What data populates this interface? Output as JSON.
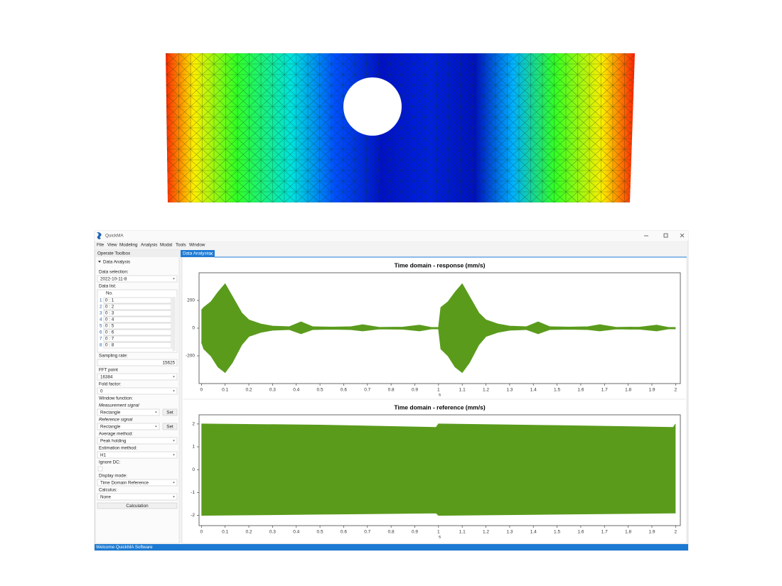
{
  "window": {
    "title": "QuickMA",
    "menu": [
      "File",
      "View",
      "Modeling",
      "Analysis",
      "Modal",
      "Tools",
      "Window"
    ],
    "status": "Welcome QuickMA Software"
  },
  "toolbox": {
    "title": "Operate Toolbox",
    "section": "Data Analysis",
    "data_selection": {
      "label": "Data selection:",
      "value": "2022-10-11-8"
    },
    "data_list": {
      "label": "Data list:",
      "header": "No.",
      "rows": [
        [
          "1",
          "0 : 1"
        ],
        [
          "2",
          "0 : 2"
        ],
        [
          "3",
          "0 : 3"
        ],
        [
          "4",
          "0 : 4"
        ],
        [
          "5",
          "0 : 5"
        ],
        [
          "6",
          "0 : 6"
        ],
        [
          "7",
          "0 : 7"
        ],
        [
          "8",
          "0 : 8"
        ]
      ]
    },
    "sampling_rate": {
      "label": "Sampling rate:",
      "value": "15625"
    },
    "fft_point": {
      "label": "FFT point",
      "value": "16384"
    },
    "fold_factor": {
      "label": "Fold factor:",
      "value": "0"
    },
    "window_function": {
      "label": "Window function:",
      "measurement": {
        "label": "Measurement signal",
        "value": "Rectangle",
        "button": "Set"
      },
      "reference": {
        "label": "Reference signal",
        "value": "Rectangle",
        "button": "Set"
      }
    },
    "average_method": {
      "label": "Average method:",
      "value": "Peak holding"
    },
    "estimation_method": {
      "label": "Estimation method:",
      "value": "H1"
    },
    "ignore_dc": {
      "label": "Ignore DC:"
    },
    "display_mode": {
      "label": "Display mode:",
      "value": "Time Domain Reference"
    },
    "calculus": {
      "label": "Calculus:",
      "value": "None"
    },
    "button": "Calculation"
  },
  "tab": "Data Analysis",
  "chart_data": [
    {
      "type": "area",
      "title": "Time domain - response (mm/s)",
      "xlabel": "s",
      "color": "#5a9b1c",
      "x": [
        0,
        0.01,
        0.04,
        0.07,
        0.1,
        0.13,
        0.17,
        0.2,
        0.25,
        0.3,
        0.37,
        0.42,
        0.47,
        0.55,
        0.63,
        0.68,
        0.75,
        0.85,
        0.92,
        0.97,
        1.0,
        1.01,
        1.04,
        1.07,
        1.1,
        1.13,
        1.17,
        1.2,
        1.25,
        1.3,
        1.37,
        1.42,
        1.47,
        1.55,
        1.63,
        1.68,
        1.75,
        1.85,
        1.92,
        1.97,
        2.0
      ],
      "series": [
        {
          "values": [
            130,
            150,
            190,
            260,
            320,
            230,
            110,
            60,
            30,
            15,
            10,
            45,
            10,
            8,
            10,
            25,
            6,
            8,
            22,
            5,
            5,
            150,
            190,
            260,
            320,
            230,
            110,
            60,
            30,
            15,
            10,
            45,
            10,
            8,
            10,
            25,
            6,
            8,
            22,
            5,
            5
          ]
        },
        {
          "values": [
            -100,
            -150,
            -200,
            -280,
            -320,
            -250,
            -120,
            -60,
            -30,
            -15,
            -10,
            -40,
            -10,
            -8,
            -10,
            -20,
            -6,
            -8,
            -20,
            -5,
            -5,
            -150,
            -200,
            -280,
            -320,
            -250,
            -120,
            -60,
            -30,
            -15,
            -10,
            -40,
            -10,
            -8,
            -10,
            -20,
            -6,
            -8,
            -20,
            -5,
            -5
          ]
        }
      ],
      "xlim": [
        -0.01,
        2.02
      ],
      "xticks": [
        0,
        0.1,
        0.2,
        0.3,
        0.4,
        0.5,
        0.6,
        0.7,
        0.8,
        0.9,
        1,
        1.1,
        1.2,
        1.3,
        1.4,
        1.5,
        1.6,
        1.7,
        1.8,
        1.9,
        2
      ],
      "ylim": [
        -400,
        400
      ],
      "yticks": [
        -200,
        0,
        200
      ]
    },
    {
      "type": "area",
      "title": "Time domain - reference (mm/s)",
      "xlabel": "s",
      "color": "#5a9b1c",
      "x": [
        0,
        0.5,
        0.99,
        1.0,
        1.5,
        1.99,
        2.0
      ],
      "series": [
        {
          "values": [
            2.0,
            1.95,
            1.85,
            2.0,
            1.93,
            1.85,
            2.0
          ]
        },
        {
          "values": [
            -2.0,
            -1.95,
            -1.9,
            -2.0,
            -1.95,
            -1.9,
            -1.9
          ]
        }
      ],
      "xlim": [
        -0.01,
        2.02
      ],
      "xticks": [
        0,
        0.1,
        0.2,
        0.3,
        0.4,
        0.5,
        0.6,
        0.7,
        0.8,
        0.9,
        1,
        1.1,
        1.2,
        1.3,
        1.4,
        1.5,
        1.6,
        1.7,
        1.8,
        1.9,
        2
      ],
      "ylim": [
        -2.45,
        2.4
      ],
      "yticks": [
        -2,
        -1,
        0,
        1,
        2
      ]
    }
  ]
}
